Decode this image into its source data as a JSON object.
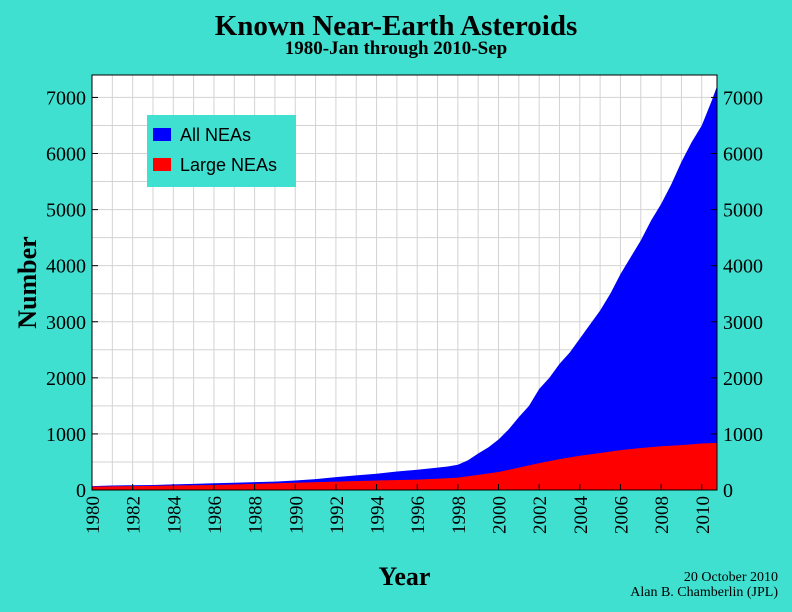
{
  "title": "Known Near-Earth Asteroids",
  "subtitle": "1980-Jan through 2010-Sep",
  "credit": {
    "date": "20 October 2010",
    "author": "Alan B. Chamberlin (JPL)"
  },
  "chart_data": {
    "type": "area",
    "title": "Known Near-Earth Asteroids",
    "subtitle": "1980-Jan through 2010-Sep",
    "xlabel": "Year",
    "ylabel": "Number",
    "xlim": [
      1980,
      2010.75
    ],
    "ylim": [
      0,
      7400
    ],
    "x_ticks": [
      1980,
      1982,
      1984,
      1986,
      1988,
      1990,
      1992,
      1994,
      1996,
      1998,
      2000,
      2002,
      2004,
      2006,
      2008,
      2010
    ],
    "y_ticks": [
      0,
      1000,
      2000,
      3000,
      4000,
      5000,
      6000,
      7000
    ],
    "y_axis_both_sides": true,
    "grid": true,
    "legend_position": "top-left",
    "plot_background": "#ffffff",
    "grid_color": "#d3d3d3",
    "legend_background": "#40e0d0",
    "series": [
      {
        "name": "All NEAs",
        "color": "#0000ff",
        "x": [
          1980,
          1981,
          1982,
          1983,
          1984,
          1985,
          1986,
          1987,
          1988,
          1989,
          1990,
          1991,
          1992,
          1993,
          1994,
          1995,
          1996,
          1997,
          1997.5,
          1998,
          1998.5,
          1999,
          1999.5,
          2000,
          2000.5,
          2001,
          2001.5,
          2002,
          2002.5,
          2003,
          2003.5,
          2004,
          2004.5,
          2005,
          2005.5,
          2006,
          2006.5,
          2007,
          2007.5,
          2008,
          2008.5,
          2009,
          2009.5,
          2010,
          2010.5,
          2010.75
        ],
        "values": [
          70,
          80,
          85,
          90,
          100,
          110,
          120,
          130,
          140,
          150,
          170,
          195,
          230,
          260,
          290,
          330,
          360,
          400,
          420,
          450,
          530,
          650,
          760,
          900,
          1080,
          1300,
          1500,
          1800,
          2000,
          2250,
          2450,
          2700,
          2950,
          3200,
          3500,
          3850,
          4150,
          4450,
          4800,
          5100,
          5450,
          5850,
          6200,
          6500,
          6950,
          7200
        ]
      },
      {
        "name": "Large NEAs",
        "color": "#ff0000",
        "x": [
          1980,
          1982,
          1984,
          1986,
          1988,
          1990,
          1992,
          1994,
          1996,
          1997,
          1998,
          1999,
          2000,
          2001,
          2002,
          2003,
          2004,
          2005,
          2006,
          2007,
          2008,
          2009,
          2010,
          2010.75
        ],
        "values": [
          60,
          70,
          80,
          90,
          110,
          130,
          150,
          170,
          185,
          200,
          220,
          270,
          320,
          400,
          480,
          550,
          610,
          660,
          710,
          750,
          780,
          800,
          830,
          840
        ]
      }
    ]
  }
}
